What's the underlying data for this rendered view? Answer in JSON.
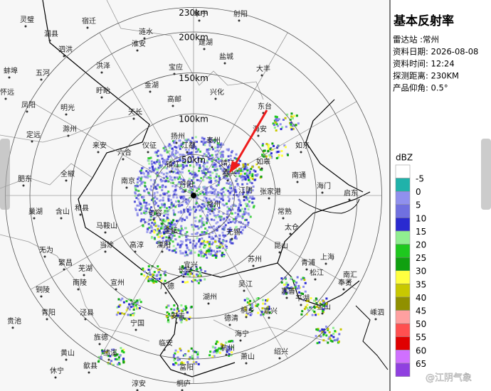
{
  "panel": {
    "title": "基本反射率",
    "station": "雷达站 :常州",
    "date": "资料日期: 2026-08-08",
    "time": "资料时间: 12:24",
    "range": "探测距离: 230KM",
    "elevation": "产品仰角: 0.5°"
  },
  "rings": [
    {
      "value": 50,
      "label": "50km"
    },
    {
      "value": 100,
      "label": "100km"
    },
    {
      "value": 150,
      "label": "150km"
    },
    {
      "value": 200,
      "label": "200km"
    },
    {
      "value": 230,
      "label": "230km"
    }
  ],
  "legend": {
    "unit": "dBZ",
    "levels": [
      {
        "label": "-5",
        "color": "#ffffff"
      },
      {
        "label": "0",
        "color": "#20b2aa"
      },
      {
        "label": "5",
        "color": "#9090ee"
      },
      {
        "label": "10",
        "color": "#7070e0"
      },
      {
        "label": "15",
        "color": "#2a2ad0"
      },
      {
        "label": "20",
        "color": "#90ee90"
      },
      {
        "label": "25",
        "color": "#1ec81e"
      },
      {
        "label": "30",
        "color": "#10a010"
      },
      {
        "label": "35",
        "color": "#ffff40"
      },
      {
        "label": "40",
        "color": "#c8c800"
      },
      {
        "label": "45",
        "color": "#909000"
      },
      {
        "label": "50",
        "color": "#ffa0a0"
      },
      {
        "label": "55",
        "color": "#ff5050"
      },
      {
        "label": "60",
        "color": "#e00000"
      },
      {
        "label": "65",
        "color": "#d070ff"
      },
      {
        "label": "",
        "color": "#9040e0"
      }
    ]
  },
  "cities": [
    "灵璧",
    "泗县",
    "宿迁",
    "泗洪",
    "洪泽",
    "淮安",
    "涟水",
    "阜宁",
    "射阳",
    "建湖",
    "盐城",
    "大丰",
    "宝应",
    "金湖",
    "高邮",
    "兴化",
    "东台",
    "扬州",
    "天长",
    "盱眙",
    "明光",
    "凤阳",
    "定远",
    "滁州",
    "来安",
    "全椒",
    "肥东",
    "巢湖",
    "含山",
    "和县",
    "马鞍山",
    "无为",
    "当涂",
    "芜湖",
    "繁昌",
    "南陵",
    "宣州",
    "泾县",
    "宁国",
    "广德",
    "长兴",
    "湖州",
    "安吉",
    "德清",
    "杭州",
    "富阳",
    "萧山",
    "绍兴",
    "嘉兴",
    "桐乡",
    "海宁",
    "平湖",
    "嘉善",
    "吴江",
    "苏州",
    "昆山",
    "太仓",
    "常熟",
    "张家港",
    "江阴",
    "无锡",
    "宜兴",
    "溧阳",
    "高淳",
    "金坛",
    "常州",
    "丹阳",
    "镇江",
    "句容",
    "南京",
    "六合",
    "仪征",
    "江都",
    "泰州",
    "泰兴",
    "靖江",
    "海安",
    "如皋",
    "如东",
    "南通",
    "海门",
    "启东",
    "上海",
    "松江",
    "青浦",
    "南汇",
    "奉贤",
    "金山",
    "嵊泗",
    "黄山",
    "青阳",
    "贵池",
    "铜陵",
    "绩溪",
    "旌德",
    "歙县",
    "休宁",
    "淳安",
    "桐庐",
    "临安",
    "蚌埠",
    "五河",
    "怀远"
  ],
  "watermark": "@江阴气象"
}
